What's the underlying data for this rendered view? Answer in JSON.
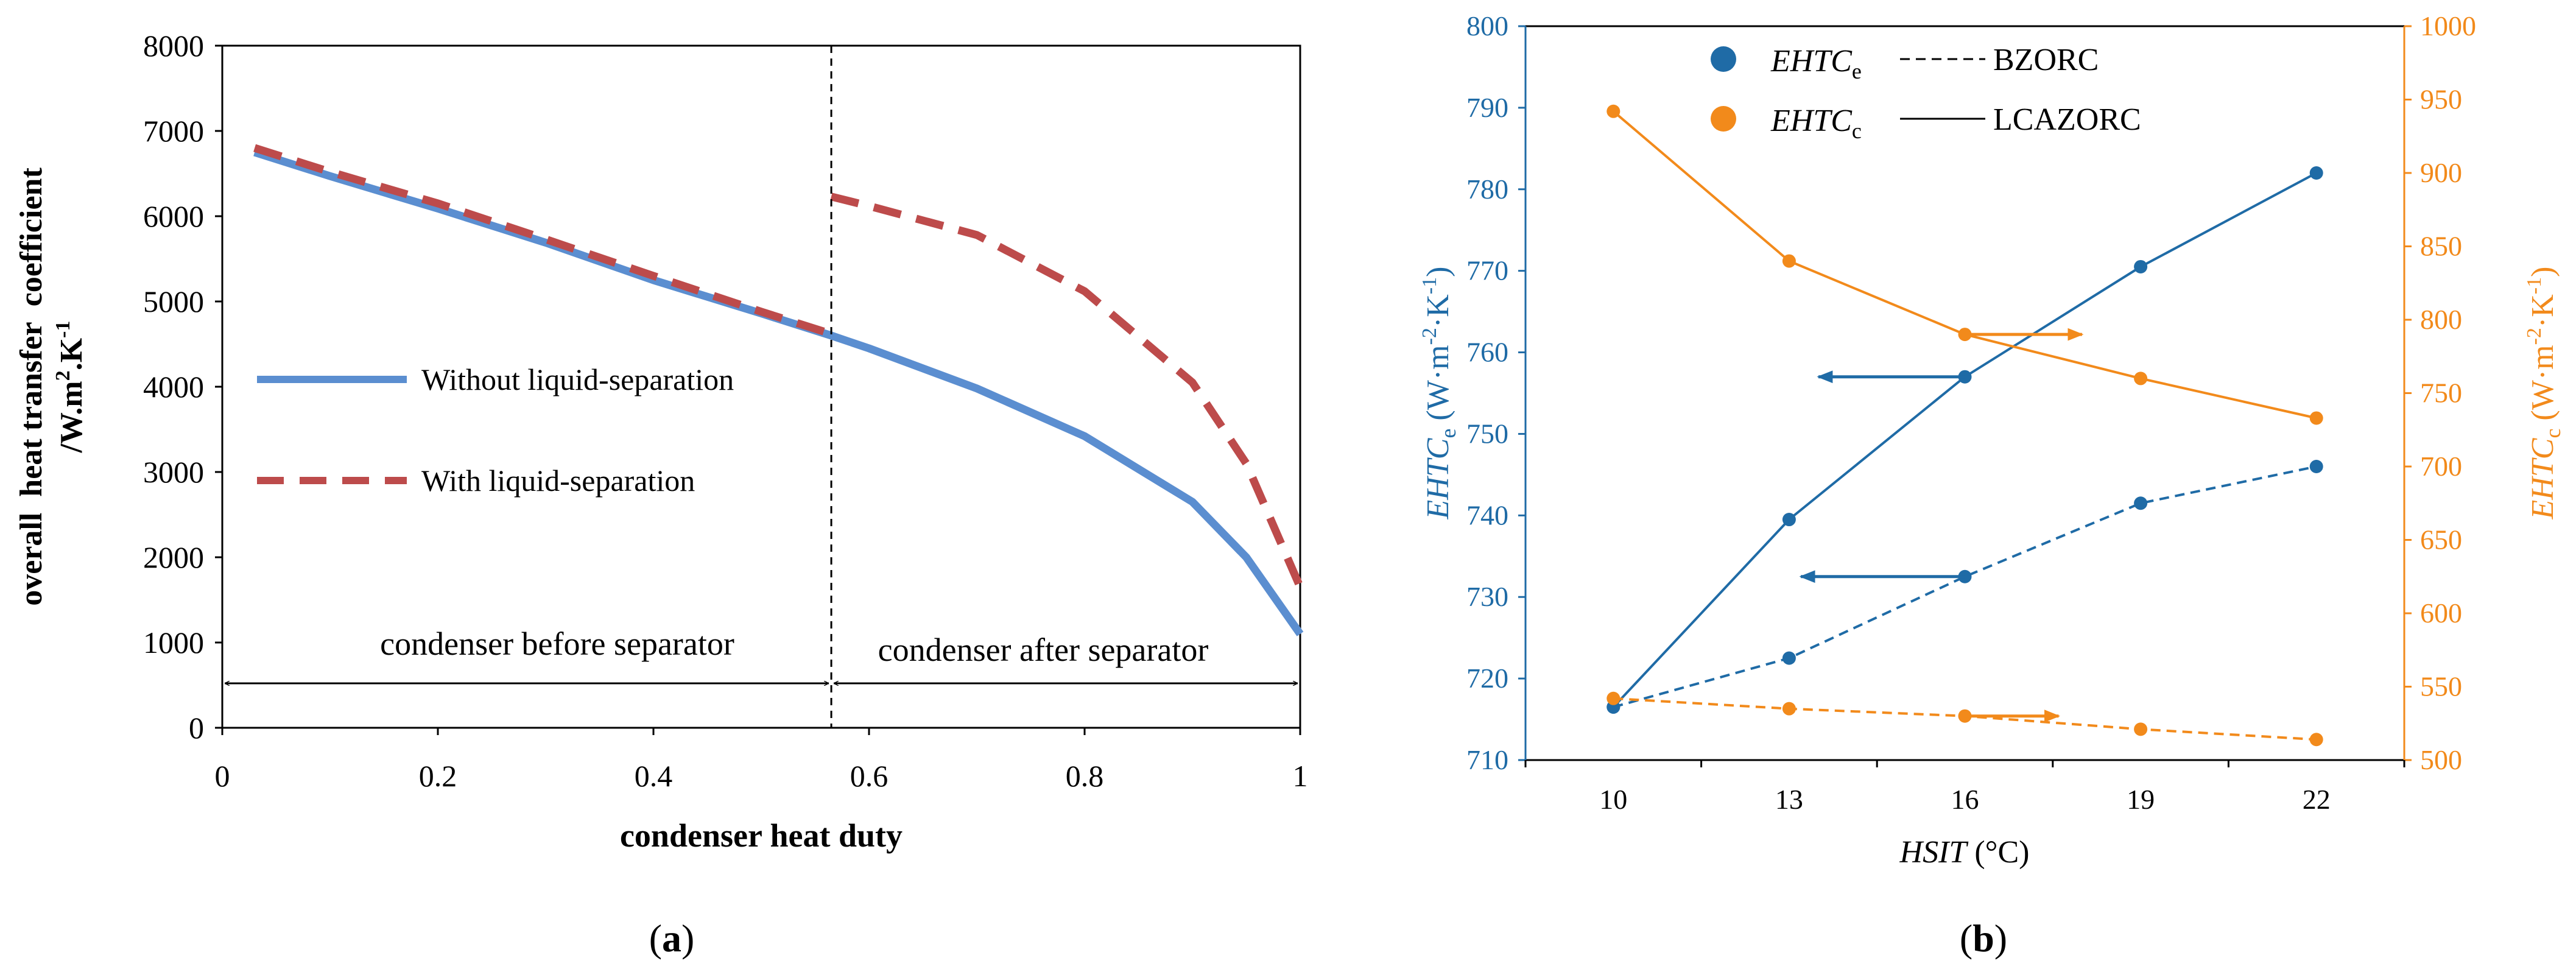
{
  "panels": {
    "a": {
      "label_prefix": "(",
      "label_letter": "a",
      "label_suffix": ")"
    },
    "b": {
      "label_prefix": "(",
      "label_letter": "b",
      "label_suffix": ")"
    }
  },
  "colors": {
    "blue_a": "#5B8ED0",
    "red_a": "#BD4B4B",
    "blue_b": "#1F6BA6",
    "orange_b": "#F28A1B"
  },
  "chart_data": [
    {
      "id": "a",
      "type": "line",
      "xlabel": "condenser heat duty",
      "ylabel_line1": "overall  heat transfer  coefficient",
      "ylabel_line2": "/W.m",
      "ylabel_sup1": "2",
      "ylabel_mid": ".K",
      "ylabel_sup2": "-1",
      "xlim": [
        0,
        1
      ],
      "ylim": [
        0,
        8000
      ],
      "xticks": [
        0,
        0.2,
        0.4,
        0.6,
        0.8,
        1
      ],
      "xtick_labels": [
        "0",
        "0.2",
        "0.4",
        "0.6",
        "0.8",
        "1"
      ],
      "yticks": [
        0,
        1000,
        2000,
        3000,
        4000,
        5000,
        6000,
        7000,
        8000
      ],
      "ytick_labels": [
        "0",
        "1000",
        "2000",
        "3000",
        "4000",
        "5000",
        "6000",
        "7000",
        "8000"
      ],
      "separator_x": 0.565,
      "region_left_label": "condenser before separator",
      "region_right_label": "condenser after separator",
      "series": [
        {
          "name": "Without liquid-separation",
          "style": "solid",
          "x": [
            0.03,
            0.1,
            0.2,
            0.3,
            0.4,
            0.5,
            0.565,
            0.6,
            0.7,
            0.8,
            0.9,
            0.95,
            1.0
          ],
          "y": [
            6750,
            6470,
            6090,
            5690,
            5250,
            4860,
            4600,
            4450,
            3980,
            3420,
            2650,
            2000,
            1100
          ]
        },
        {
          "name": "With liquid-separation",
          "style": "dashed",
          "x": [
            0.03,
            0.1,
            0.2,
            0.3,
            0.4,
            0.5,
            0.565,
            0.565,
            0.6,
            0.7,
            0.8,
            0.9,
            0.95,
            1.0
          ],
          "y": [
            6800,
            6520,
            6150,
            5730,
            5300,
            4880,
            4620,
            6230,
            6120,
            5780,
            5120,
            4050,
            3100,
            1650
          ]
        }
      ]
    },
    {
      "id": "b",
      "type": "line",
      "xlabel_italic": "HSIT",
      "xlabel_unit": " (°C)",
      "ylabel_left_italic": "EHTC",
      "ylabel_left_sub": "e",
      "ylabel_left_unit": " (W·m",
      "ylabel_left_sup1": "-2",
      "ylabel_left_mid": "·K",
      "ylabel_left_sup2": "-1",
      "ylabel_left_close": ")",
      "ylabel_right_italic": "EHTC",
      "ylabel_right_sub": "c",
      "ylabel_right_unit": " (W·m",
      "ylabel_right_sup1": "-2",
      "ylabel_right_mid": "·K",
      "ylabel_right_sup2": "-1",
      "ylabel_right_close": ")",
      "categories": [
        10,
        13,
        16,
        19,
        22
      ],
      "xtick_labels": [
        "10",
        "13",
        "16",
        "19",
        "22"
      ],
      "ylim_left": [
        710,
        800
      ],
      "ylim_right": [
        500,
        1000
      ],
      "yticks_left": [
        710,
        720,
        730,
        740,
        750,
        760,
        770,
        780,
        790,
        800
      ],
      "yticks_left_labels": [
        "710",
        "720",
        "730",
        "740",
        "750",
        "760",
        "770",
        "780",
        "790",
        "800"
      ],
      "yticks_right": [
        500,
        550,
        600,
        650,
        700,
        750,
        800,
        850,
        900,
        950,
        1000
      ],
      "yticks_right_labels": [
        "500",
        "550",
        "600",
        "650",
        "700",
        "750",
        "800",
        "850",
        "900",
        "950",
        "1000"
      ],
      "legend": {
        "e_italic": "EHTC",
        "e_sub": "e",
        "c_italic": "EHTC",
        "c_sub": "c",
        "bzorc": "BZORC",
        "lcazorc": "LCAZORC"
      },
      "series": [
        {
          "name": "EHTCe LCAZORC",
          "axis": "left",
          "color": "blue",
          "style": "solid",
          "values": [
            716.5,
            739.5,
            757.0,
            770.5,
            782.0
          ]
        },
        {
          "name": "EHTCe BZORC",
          "axis": "left",
          "color": "blue",
          "style": "dashed",
          "values": [
            716.5,
            722.5,
            732.5,
            741.5,
            746.0
          ]
        },
        {
          "name": "EHTCc LCAZORC",
          "axis": "right",
          "color": "orange",
          "style": "solid",
          "values": [
            942,
            840,
            790,
            760,
            733
          ]
        },
        {
          "name": "EHTCc BZORC",
          "axis": "right",
          "color": "orange",
          "style": "dashed",
          "values": [
            542,
            535,
            530,
            521,
            514
          ]
        }
      ],
      "arrows": [
        {
          "axis": "left",
          "from_x": 16,
          "to_x": 13.5,
          "y": 757.0
        },
        {
          "axis": "left",
          "from_x": 16,
          "to_x": 13.2,
          "y": 732.5
        },
        {
          "axis": "right",
          "from_x": 16,
          "to_x": 18.0,
          "y": 790
        },
        {
          "axis": "right",
          "from_x": 16,
          "to_x": 17.6,
          "y": 530
        }
      ]
    }
  ]
}
